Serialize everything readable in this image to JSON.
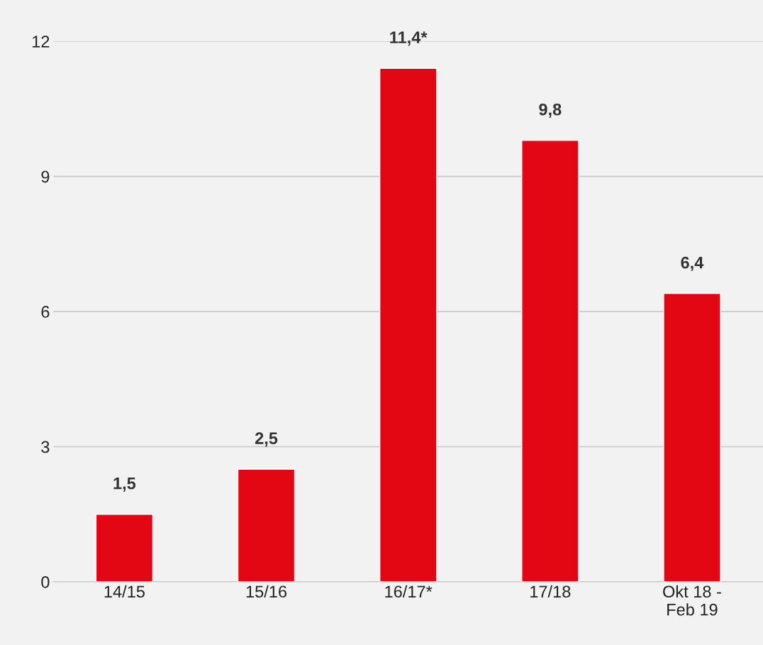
{
  "chart_data": {
    "type": "bar",
    "categories": [
      "14/15",
      "15/16",
      "16/17*",
      "17/18",
      "Okt 18 -\nFeb 19"
    ],
    "values": [
      1.5,
      2.5,
      11.4,
      9.8,
      6.4
    ],
    "value_labels": [
      "1,5",
      "2,5",
      "11,4*",
      "9,8",
      "6,4"
    ],
    "color": "#e30613",
    "ylim": [
      0,
      12
    ],
    "yticks": [
      0,
      3,
      6,
      9,
      12
    ],
    "grid": "y",
    "legend": false
  }
}
